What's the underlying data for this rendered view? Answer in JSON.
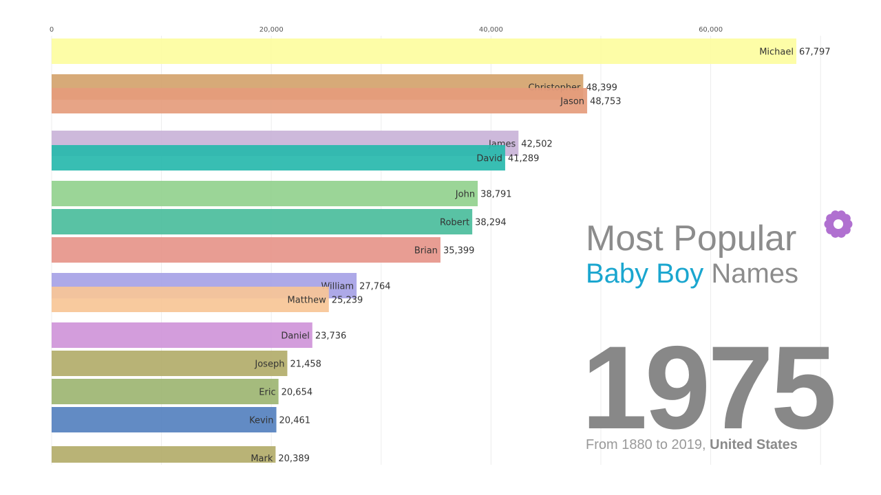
{
  "title": {
    "line1": "Most Popular",
    "highlight": "Baby Boy",
    "rest": "Names"
  },
  "year": "1975",
  "footnote": {
    "prefix": "From 1880 to 2019,",
    "country": "United States"
  },
  "colors": {
    "title_gray": "#8c8c8c",
    "highlight": "#1aa6cf",
    "flower": "#b070d0"
  },
  "chart_data": {
    "type": "bar",
    "orientation": "horizontal",
    "xlim": [
      0,
      75000
    ],
    "x_ticks": [
      0,
      20000,
      40000,
      60000
    ],
    "x_tick_labels": [
      "0",
      "20,000",
      "40,000",
      "60,000"
    ],
    "grid": true,
    "bars": [
      {
        "name": "Michael",
        "value": 67797,
        "value_label": "67,797",
        "color": "#fdfda0"
      },
      {
        "name": "Christopher",
        "value": 48399,
        "value_label": "48,399",
        "color": "#d4a36c"
      },
      {
        "name": "Jason",
        "value": 48753,
        "value_label": "48,753",
        "color": "#e59c7c"
      },
      {
        "name": "James",
        "value": 42502,
        "value_label": "42,502",
        "color": "#c9b3d8"
      },
      {
        "name": "David",
        "value": 41289,
        "value_label": "41,289",
        "color": "#27b9ac"
      },
      {
        "name": "John",
        "value": 38791,
        "value_label": "38,791",
        "color": "#92d18e"
      },
      {
        "name": "Robert",
        "value": 38294,
        "value_label": "38,294",
        "color": "#4bbd9c"
      },
      {
        "name": "Brian",
        "value": 35399,
        "value_label": "35,399",
        "color": "#e6958a"
      },
      {
        "name": "William",
        "value": 27764,
        "value_label": "27,764",
        "color": "#a6a2e6"
      },
      {
        "name": "Matthew",
        "value": 25239,
        "value_label": "25,239",
        "color": "#f7c596"
      },
      {
        "name": "Daniel",
        "value": 23736,
        "value_label": "23,736",
        "color": "#cf95d9"
      },
      {
        "name": "Joseph",
        "value": 21458,
        "value_label": "21,458",
        "color": "#b2ad6a"
      },
      {
        "name": "Eric",
        "value": 20654,
        "value_label": "20,654",
        "color": "#9db572"
      },
      {
        "name": "Kevin",
        "value": 20461,
        "value_label": "20,461",
        "color": "#5581bf"
      },
      {
        "name": "Mark",
        "value": 20389,
        "value_label": "20,389",
        "color": "#b3ad6a"
      }
    ]
  }
}
